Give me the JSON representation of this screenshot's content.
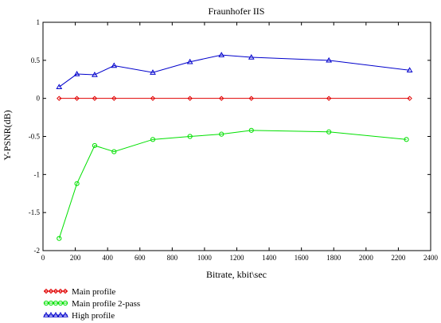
{
  "chart_data": {
    "type": "line",
    "title": "Fraunhofer IIS",
    "xlabel": "Bitrate, kbit\\sec",
    "ylabel": "Y-PSNR(dB)",
    "xlim": [
      0,
      2400
    ],
    "ylim": [
      -2,
      1
    ],
    "xticks": [
      0,
      200,
      400,
      600,
      800,
      1000,
      1200,
      1400,
      1600,
      1800,
      2000,
      2200,
      2400
    ],
    "yticks": [
      1,
      0.5,
      0,
      -0.5,
      -1,
      -1.5,
      -2
    ],
    "xtick_labels": [
      "0",
      "200",
      "400",
      "600",
      "800",
      "1000",
      "1200",
      "1400",
      "1600",
      "1800",
      "2000",
      "2200",
      "2400"
    ],
    "ytick_labels": [
      "1",
      "0.5",
      "0",
      "-0.5",
      "-1",
      "-1.5",
      "-2"
    ],
    "grid": false,
    "legend_position": "bottom-left",
    "series": [
      {
        "name": "Main profile",
        "color": "#e00000",
        "marker": "diamond",
        "x": [
          100,
          210,
          320,
          440,
          680,
          910,
          1105,
          1290,
          1770,
          2270
        ],
        "y": [
          0,
          0,
          0,
          0,
          0,
          0,
          0,
          0,
          0,
          0
        ]
      },
      {
        "name": "Main profile 2-pass",
        "color": "#00e000",
        "marker": "circle",
        "x": [
          100,
          210,
          320,
          440,
          680,
          910,
          1105,
          1290,
          1770,
          2250
        ],
        "y": [
          -1.84,
          -1.12,
          -0.62,
          -0.7,
          -0.54,
          -0.5,
          -0.47,
          -0.42,
          -0.44,
          -0.54
        ]
      },
      {
        "name": "High profile",
        "color": "#0000cc",
        "marker": "triangle",
        "x": [
          100,
          210,
          320,
          440,
          680,
          910,
          1105,
          1290,
          1770,
          2270
        ],
        "y": [
          0.15,
          0.32,
          0.31,
          0.43,
          0.34,
          0.48,
          0.57,
          0.54,
          0.5,
          0.37
        ]
      }
    ]
  }
}
